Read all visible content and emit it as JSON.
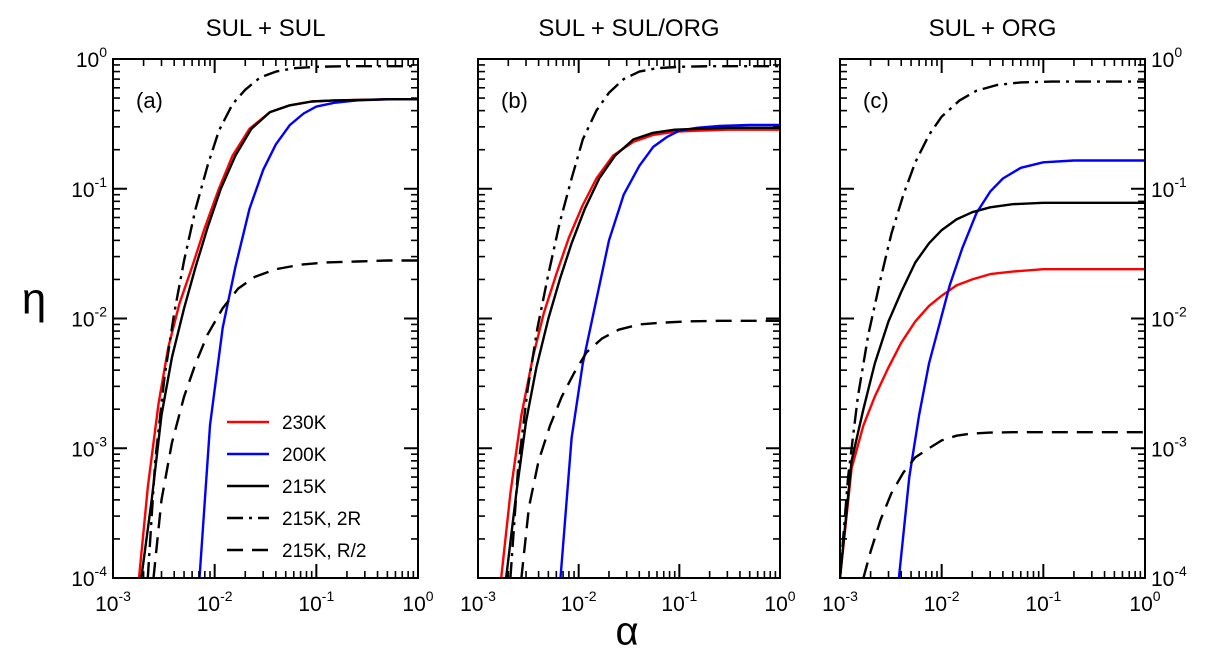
{
  "chart_data": [
    {
      "type": "line",
      "panel": "(a)",
      "title": "SUL + SUL",
      "xscale": "log",
      "yscale": "log",
      "xlim": [
        0.001,
        1
      ],
      "ylim": [
        0.0001,
        1
      ],
      "series": [
        {
          "name": "230K",
          "color": "#ff0000",
          "style": "solid",
          "x": [
            0.0018,
            0.0022,
            0.0028,
            0.0035,
            0.0045,
            0.006,
            0.008,
            0.011,
            0.015,
            0.022,
            0.035,
            0.055,
            0.09,
            0.15,
            0.3,
            0.6,
            1.0
          ],
          "y": [
            0.0001,
            0.0005,
            0.0022,
            0.006,
            0.013,
            0.025,
            0.05,
            0.1,
            0.18,
            0.29,
            0.39,
            0.44,
            0.47,
            0.48,
            0.485,
            0.49,
            0.49
          ]
        },
        {
          "name": "200K",
          "color": "#0000ff",
          "style": "solid",
          "x": [
            0.0071,
            0.009,
            0.012,
            0.016,
            0.022,
            0.03,
            0.04,
            0.055,
            0.075,
            0.1,
            0.15,
            0.25,
            0.5,
            1.0
          ],
          "y": [
            0.0001,
            0.0015,
            0.0085,
            0.025,
            0.07,
            0.14,
            0.22,
            0.31,
            0.38,
            0.43,
            0.46,
            0.48,
            0.49,
            0.49
          ]
        },
        {
          "name": "215K",
          "color": "#000000",
          "style": "solid",
          "x": [
            0.0019,
            0.0024,
            0.003,
            0.0038,
            0.005,
            0.0065,
            0.0085,
            0.0115,
            0.016,
            0.023,
            0.035,
            0.055,
            0.09,
            0.15,
            0.3,
            0.6,
            1.0
          ],
          "y": [
            0.0001,
            0.0004,
            0.0018,
            0.005,
            0.012,
            0.025,
            0.05,
            0.1,
            0.18,
            0.29,
            0.39,
            0.44,
            0.47,
            0.48,
            0.485,
            0.49,
            0.49
          ]
        },
        {
          "name": "215K,  2R",
          "color": "#000000",
          "style": "dashdot",
          "x": [
            0.0022,
            0.0026,
            0.0032,
            0.004,
            0.005,
            0.0065,
            0.0085,
            0.011,
            0.015,
            0.02,
            0.028,
            0.04,
            0.06,
            0.1,
            0.2,
            0.5,
            1.0
          ],
          "y": [
            0.0001,
            0.0008,
            0.0035,
            0.011,
            0.028,
            0.07,
            0.15,
            0.28,
            0.45,
            0.58,
            0.72,
            0.8,
            0.85,
            0.87,
            0.88,
            0.88,
            0.88
          ]
        },
        {
          "name": "215K, R/2",
          "color": "#000000",
          "style": "dashed",
          "x": [
            0.0025,
            0.003,
            0.0038,
            0.005,
            0.0065,
            0.0085,
            0.012,
            0.017,
            0.025,
            0.04,
            0.07,
            0.12,
            0.25,
            0.5,
            1.0
          ],
          "y": [
            0.0001,
            0.0004,
            0.0011,
            0.0025,
            0.0045,
            0.0075,
            0.012,
            0.017,
            0.021,
            0.024,
            0.026,
            0.027,
            0.0275,
            0.028,
            0.028
          ]
        }
      ],
      "legend": {
        "placement": "bottom-right"
      }
    },
    {
      "type": "line",
      "panel": "(b)",
      "title": "SUL + SUL/ORG",
      "xscale": "log",
      "yscale": "log",
      "xlim": [
        0.001,
        1
      ],
      "ylim": [
        0.0001,
        1
      ],
      "series": [
        {
          "name": "230K",
          "color": "#ff0000",
          "style": "solid",
          "x": [
            0.0017,
            0.0021,
            0.0027,
            0.0035,
            0.0045,
            0.006,
            0.008,
            0.011,
            0.015,
            0.022,
            0.035,
            0.055,
            0.09,
            0.15,
            0.3,
            0.6,
            1.0
          ],
          "y": [
            0.0001,
            0.00045,
            0.0018,
            0.005,
            0.011,
            0.022,
            0.042,
            0.075,
            0.12,
            0.18,
            0.23,
            0.26,
            0.275,
            0.28,
            0.285,
            0.285,
            0.285
          ]
        },
        {
          "name": "200K",
          "color": "#0000ff",
          "style": "solid",
          "x": [
            0.0066,
            0.0085,
            0.011,
            0.015,
            0.02,
            0.028,
            0.04,
            0.055,
            0.075,
            0.1,
            0.15,
            0.25,
            0.5,
            1.0
          ],
          "y": [
            0.0001,
            0.0012,
            0.0045,
            0.014,
            0.04,
            0.09,
            0.15,
            0.21,
            0.25,
            0.28,
            0.295,
            0.305,
            0.31,
            0.31
          ]
        },
        {
          "name": "215K",
          "color": "#000000",
          "style": "solid",
          "x": [
            0.0019,
            0.0024,
            0.003,
            0.0038,
            0.005,
            0.0065,
            0.0085,
            0.0115,
            0.016,
            0.023,
            0.035,
            0.055,
            0.09,
            0.15,
            0.3,
            0.6,
            1.0
          ],
          "y": [
            0.0001,
            0.00045,
            0.0016,
            0.0042,
            0.01,
            0.02,
            0.038,
            0.07,
            0.12,
            0.18,
            0.24,
            0.27,
            0.285,
            0.29,
            0.295,
            0.295,
            0.295
          ]
        },
        {
          "name": "215K,  2R",
          "color": "#000000",
          "style": "dashdot",
          "x": [
            0.0021,
            0.0025,
            0.0031,
            0.0039,
            0.005,
            0.0065,
            0.0085,
            0.011,
            0.015,
            0.02,
            0.028,
            0.04,
            0.06,
            0.1,
            0.2,
            0.5,
            1.0
          ],
          "y": [
            0.0001,
            0.0007,
            0.0028,
            0.0085,
            0.022,
            0.055,
            0.12,
            0.24,
            0.4,
            0.55,
            0.7,
            0.8,
            0.85,
            0.87,
            0.88,
            0.88,
            0.88
          ]
        },
        {
          "name": "215K, R/2",
          "color": "#000000",
          "style": "dashed",
          "x": [
            0.0027,
            0.0032,
            0.004,
            0.0052,
            0.0068,
            0.009,
            0.012,
            0.017,
            0.025,
            0.04,
            0.07,
            0.12,
            0.25,
            0.5,
            1.0
          ],
          "y": [
            0.0001,
            0.00035,
            0.0008,
            0.0015,
            0.0025,
            0.0038,
            0.0055,
            0.007,
            0.0082,
            0.009,
            0.0093,
            0.0095,
            0.0096,
            0.0096,
            0.0096
          ]
        }
      ]
    },
    {
      "type": "line",
      "panel": "(c)",
      "title": "SUL + ORG",
      "xscale": "log",
      "yscale": "log",
      "xlim": [
        0.001,
        1
      ],
      "ylim": [
        0.0001,
        1
      ],
      "series": [
        {
          "name": "230K",
          "color": "#ff0000",
          "style": "solid",
          "x": [
            0.001,
            0.0013,
            0.0017,
            0.0022,
            0.003,
            0.004,
            0.0055,
            0.0075,
            0.01,
            0.014,
            0.02,
            0.03,
            0.05,
            0.1,
            0.2,
            0.5,
            1.0
          ],
          "y": [
            0.0001,
            0.0007,
            0.0015,
            0.0025,
            0.0042,
            0.0065,
            0.0095,
            0.0125,
            0.015,
            0.018,
            0.02,
            0.022,
            0.023,
            0.024,
            0.024,
            0.024,
            0.024
          ]
        },
        {
          "name": "200K",
          "color": "#0000ff",
          "style": "solid",
          "x": [
            0.0038,
            0.0048,
            0.006,
            0.0075,
            0.0095,
            0.012,
            0.016,
            0.022,
            0.03,
            0.04,
            0.06,
            0.1,
            0.2,
            0.5,
            1.0
          ],
          "y": [
            0.0001,
            0.0006,
            0.0018,
            0.0045,
            0.009,
            0.018,
            0.035,
            0.065,
            0.095,
            0.12,
            0.145,
            0.16,
            0.165,
            0.165,
            0.165
          ]
        },
        {
          "name": "215K",
          "color": "#000000",
          "style": "solid",
          "x": [
            0.001,
            0.0013,
            0.0017,
            0.0022,
            0.003,
            0.004,
            0.0055,
            0.0075,
            0.01,
            0.014,
            0.02,
            0.03,
            0.05,
            0.1,
            0.2,
            0.5,
            1.0
          ],
          "y": [
            0.0001,
            0.0008,
            0.002,
            0.0045,
            0.0095,
            0.016,
            0.027,
            0.038,
            0.048,
            0.058,
            0.066,
            0.072,
            0.076,
            0.078,
            0.078,
            0.078,
            0.078
          ]
        },
        {
          "name": "215K,  2R",
          "color": "#000000",
          "style": "dashdot",
          "x": [
            0.001,
            0.0012,
            0.0015,
            0.0019,
            0.0025,
            0.0032,
            0.0042,
            0.0055,
            0.0075,
            0.01,
            0.015,
            0.022,
            0.035,
            0.06,
            0.12,
            0.3,
            1.0
          ],
          "y": [
            0.0001,
            0.0006,
            0.0025,
            0.0075,
            0.02,
            0.045,
            0.09,
            0.16,
            0.26,
            0.36,
            0.48,
            0.57,
            0.63,
            0.66,
            0.67,
            0.67,
            0.67
          ]
        },
        {
          "name": "215K, R/2",
          "color": "#000000",
          "style": "dashed",
          "x": [
            0.0017,
            0.002,
            0.0025,
            0.0032,
            0.0042,
            0.0055,
            0.0075,
            0.01,
            0.014,
            0.02,
            0.03,
            0.05,
            0.1,
            0.3,
            1.0
          ],
          "y": [
            0.0001,
            0.00016,
            0.00028,
            0.00045,
            0.00065,
            0.00085,
            0.001,
            0.00115,
            0.00125,
            0.0013,
            0.00132,
            0.00133,
            0.00133,
            0.00133,
            0.00133
          ]
        }
      ]
    }
  ],
  "axes": {
    "xlabel": "α",
    "ylabel": "η",
    "x_ticks": [
      {
        "base": "10",
        "exp": "-3"
      },
      {
        "base": "10",
        "exp": "-2"
      },
      {
        "base": "10",
        "exp": "-1"
      },
      {
        "base": "10",
        "exp": "0"
      }
    ],
    "y_ticks": [
      {
        "base": "10",
        "exp": "-4"
      },
      {
        "base": "10",
        "exp": "-3"
      },
      {
        "base": "10",
        "exp": "-2"
      },
      {
        "base": "10",
        "exp": "-1"
      },
      {
        "base": "10",
        "exp": "0"
      }
    ]
  },
  "legend_order": [
    "230K",
    "200K",
    "215K",
    "215K,  2R",
    "215K, R/2"
  ]
}
